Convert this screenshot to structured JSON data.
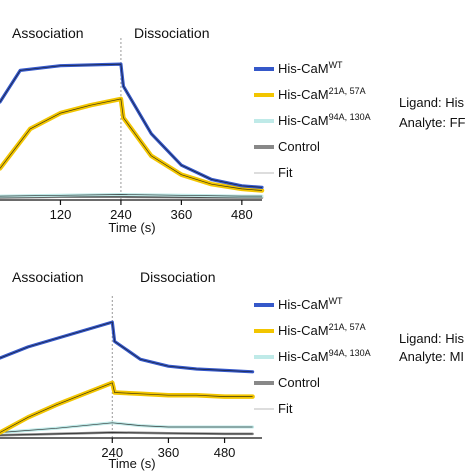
{
  "chart_data": [
    {
      "type": "line",
      "phase_labels": [
        "Association",
        "Dissociation"
      ],
      "xlabel": "Time (s)",
      "x_ticks": [
        120,
        240,
        360,
        480
      ],
      "xlim": [
        0,
        520
      ],
      "ylim": [
        0,
        1.0
      ],
      "legend_position": "right",
      "series": [
        {
          "name": "His-CaM",
          "sup": "WT",
          "color": "#3558c9",
          "x": [
            0,
            40,
            120,
            240,
            245,
            300,
            360,
            420,
            480,
            520
          ],
          "y": [
            0.62,
            0.82,
            0.85,
            0.86,
            0.72,
            0.42,
            0.22,
            0.13,
            0.09,
            0.08
          ]
        },
        {
          "name": "His-CaM",
          "sup": "21A, 57A",
          "color": "#f2c500",
          "x": [
            0,
            60,
            120,
            180,
            240,
            245,
            300,
            360,
            420,
            480,
            520
          ],
          "y": [
            0.2,
            0.45,
            0.55,
            0.6,
            0.64,
            0.52,
            0.28,
            0.16,
            0.1,
            0.07,
            0.06
          ]
        },
        {
          "name": "His-CaM",
          "sup": "94A, 130A",
          "color": "#bfeae8",
          "x": [
            0,
            120,
            240,
            360,
            480,
            520
          ],
          "y": [
            0.025,
            0.03,
            0.035,
            0.03,
            0.025,
            0.025
          ]
        },
        {
          "name": "Control",
          "sup": "",
          "color": "#888888",
          "x": [
            0,
            120,
            240,
            360,
            480,
            520
          ],
          "y": [
            0.015,
            0.02,
            0.02,
            0.018,
            0.015,
            0.015
          ]
        }
      ],
      "legend": [
        "His-CaM",
        "His-CaM",
        "His-CaM",
        "Control",
        "Fit"
      ],
      "annotation": [
        "Ligand: His",
        "Analyte: FF"
      ]
    },
    {
      "type": "line",
      "phase_labels": [
        "Association",
        "Dissociation"
      ],
      "xlabel": "Time (s)",
      "x_ticks": [
        240,
        360,
        480
      ],
      "xlim": [
        0,
        560
      ],
      "ylim": [
        0,
        1.0
      ],
      "legend_position": "right",
      "series": [
        {
          "name": "His-CaM",
          "sup": "WT",
          "color": "#3558c9",
          "x": [
            0,
            60,
            120,
            180,
            240,
            245,
            300,
            360,
            420,
            480,
            540
          ],
          "y": [
            0.58,
            0.66,
            0.72,
            0.78,
            0.84,
            0.7,
            0.57,
            0.52,
            0.5,
            0.49,
            0.48
          ]
        },
        {
          "name": "His-CaM",
          "sup": "21A, 57A",
          "color": "#f2c500",
          "x": [
            0,
            60,
            120,
            180,
            240,
            245,
            300,
            360,
            420,
            480,
            540
          ],
          "y": [
            0.04,
            0.15,
            0.24,
            0.32,
            0.4,
            0.33,
            0.32,
            0.31,
            0.31,
            0.3,
            0.3
          ]
        },
        {
          "name": "His-CaM",
          "sup": "94A, 130A",
          "color": "#bfeae8",
          "x": [
            0,
            120,
            240,
            300,
            360,
            480,
            540
          ],
          "y": [
            0.04,
            0.07,
            0.11,
            0.09,
            0.08,
            0.08,
            0.08
          ]
        },
        {
          "name": "Control",
          "sup": "",
          "color": "#888888",
          "x": [
            0,
            120,
            240,
            360,
            480,
            540
          ],
          "y": [
            0.02,
            0.03,
            0.04,
            0.035,
            0.03,
            0.03
          ]
        }
      ],
      "legend": [
        "His-CaM",
        "His-CaM",
        "His-CaM",
        "Control",
        "Fit"
      ],
      "annotation": [
        "Ligand: His",
        "Analyte: MI"
      ]
    }
  ]
}
